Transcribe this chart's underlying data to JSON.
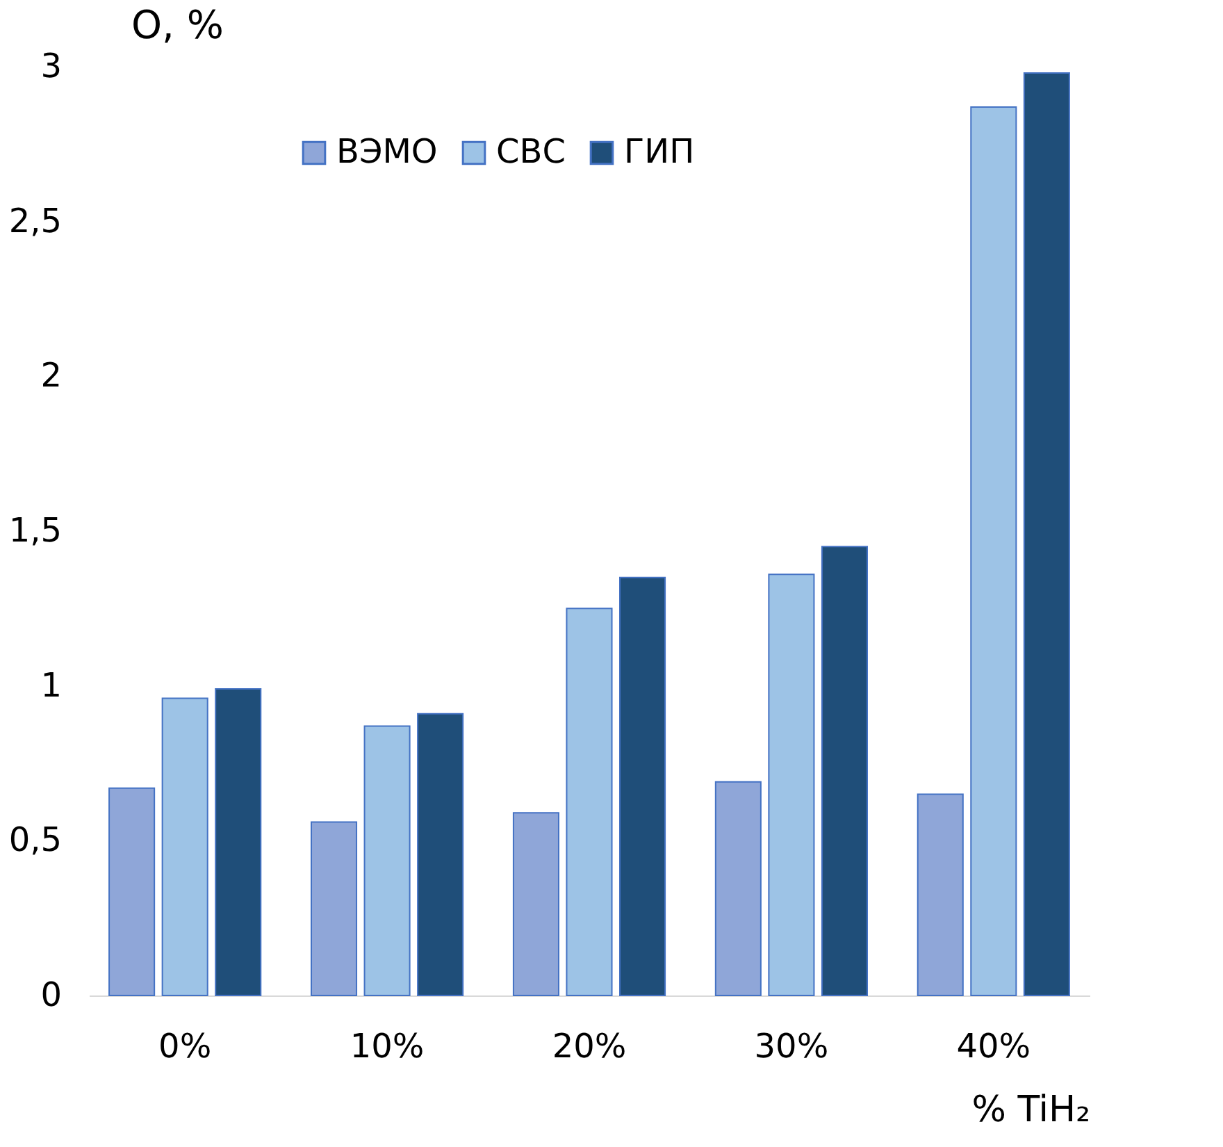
{
  "chart_data": {
    "type": "bar",
    "ylabel": "O, %",
    "xlabel": "% TiH₂",
    "categories": [
      "0%",
      "10%",
      "20%",
      "30%",
      "40%"
    ],
    "series": [
      {
        "name": "ВЭМО",
        "color": "#8fa6d8",
        "values": [
          0.67,
          0.56,
          0.59,
          0.69,
          0.65
        ]
      },
      {
        "name": "СВС",
        "color": "#9dc3e6",
        "values": [
          0.96,
          0.87,
          1.25,
          1.36,
          2.87
        ]
      },
      {
        "name": "ГИП",
        "color": "#1f4e79",
        "values": [
          0.99,
          0.91,
          1.35,
          1.45,
          2.98
        ]
      }
    ],
    "ylim": [
      0,
      3
    ],
    "yticks": [
      0,
      {
        "value": 0.5,
        "label": "0,5"
      },
      1,
      {
        "value": 1.5,
        "label": "1,5"
      },
      2,
      {
        "value": 2.5,
        "label": "2,5"
      },
      3
    ],
    "grid": false,
    "legend": "top"
  }
}
